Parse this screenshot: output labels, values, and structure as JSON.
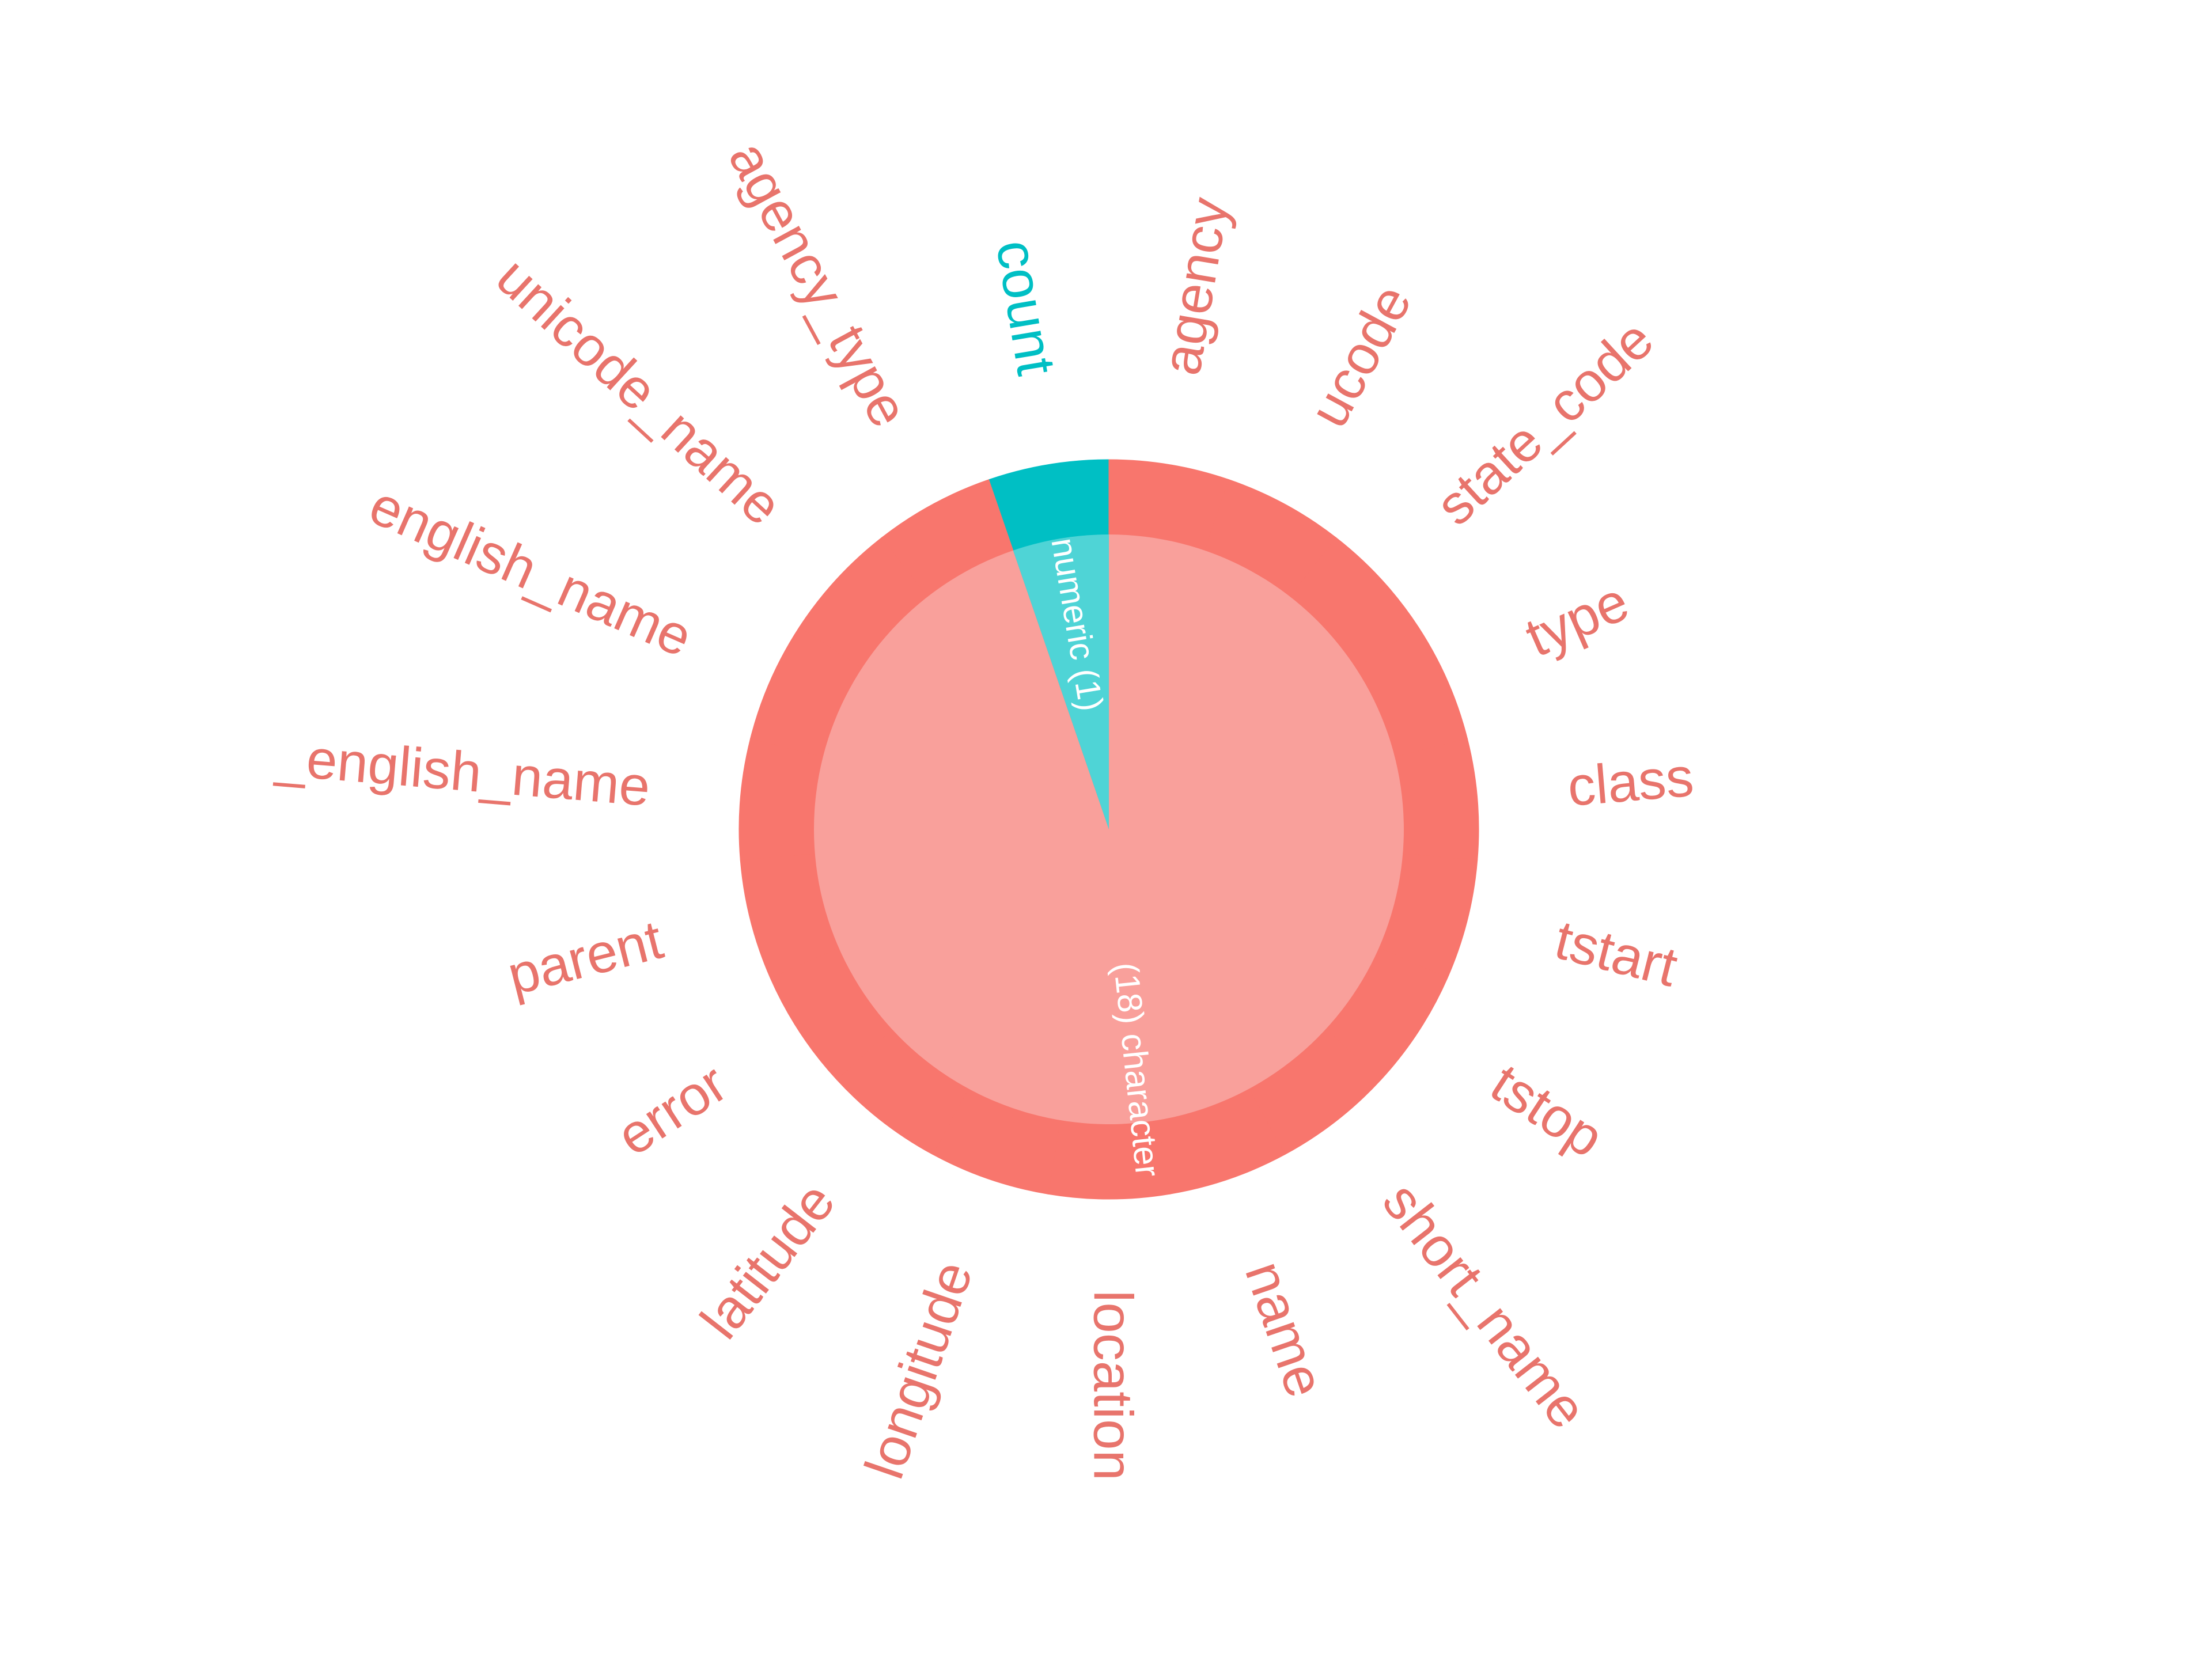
{
  "colors": {
    "character": "#F8766D",
    "character_inner": "#F9A09B",
    "numeric": "#00BFC4",
    "numeric_inner": "#4FD4D6",
    "background": "#FFFFFF"
  },
  "chart_data": {
    "type": "pie",
    "description_type": "column types (two-ring pie with column names around)",
    "type_groups": [
      {
        "type": "numeric",
        "count": 1,
        "label": "numeric (1)"
      },
      {
        "type": "character",
        "count": 18,
        "label": "(18) character"
      }
    ],
    "columns": [
      {
        "name": "count",
        "type": "numeric"
      },
      {
        "name": "agency",
        "type": "character"
      },
      {
        "name": "ucode",
        "type": "character"
      },
      {
        "name": "state_code",
        "type": "character"
      },
      {
        "name": "type",
        "type": "character"
      },
      {
        "name": "class",
        "type": "character"
      },
      {
        "name": "tstart",
        "type": "character"
      },
      {
        "name": "tstop",
        "type": "character"
      },
      {
        "name": "short_name",
        "type": "character"
      },
      {
        "name": "name",
        "type": "character"
      },
      {
        "name": "location",
        "type": "character"
      },
      {
        "name": "longitude",
        "type": "character"
      },
      {
        "name": "latitude",
        "type": "character"
      },
      {
        "name": "error",
        "type": "character"
      },
      {
        "name": "parent",
        "type": "character"
      },
      {
        "name": "_english_name",
        "type": "character"
      },
      {
        "name": "english_name",
        "type": "character"
      },
      {
        "name": "unicode_name",
        "type": "character"
      },
      {
        "name": "agency_type",
        "type": "character"
      }
    ]
  }
}
